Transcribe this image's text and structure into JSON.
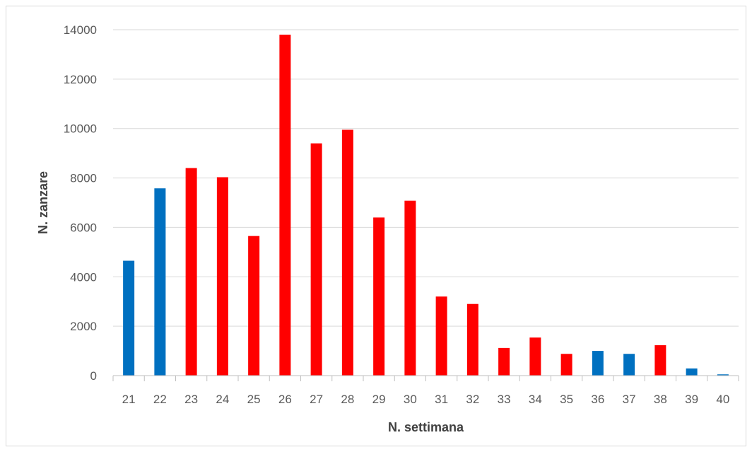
{
  "chart_data": {
    "type": "bar",
    "title": "",
    "xlabel": "N. settimana",
    "ylabel": "N. zanzare",
    "ylim": [
      0,
      14000
    ],
    "yticks": [
      0,
      2000,
      4000,
      6000,
      8000,
      10000,
      12000,
      14000
    ],
    "grid": true,
    "categories": [
      "21",
      "22",
      "23",
      "24",
      "25",
      "26",
      "27",
      "28",
      "29",
      "30",
      "31",
      "32",
      "33",
      "34",
      "35",
      "36",
      "37",
      "38",
      "39",
      "40"
    ],
    "values": [
      4650,
      7580,
      8400,
      8030,
      5650,
      13800,
      9400,
      9950,
      6400,
      7080,
      3200,
      2900,
      1120,
      1540,
      880,
      1000,
      880,
      1230,
      290,
      50
    ],
    "bar_colors": [
      "#0070c0",
      "#0070c0",
      "#ff0000",
      "#ff0000",
      "#ff0000",
      "#ff0000",
      "#ff0000",
      "#ff0000",
      "#ff0000",
      "#ff0000",
      "#ff0000",
      "#ff0000",
      "#ff0000",
      "#ff0000",
      "#ff0000",
      "#0070c0",
      "#0070c0",
      "#ff0000",
      "#0070c0",
      "#0070c0"
    ],
    "colors": {
      "blue": "#0070c0",
      "red": "#ff0000",
      "grid": "#d9d9d9",
      "axis": "#bfbfbf"
    }
  }
}
